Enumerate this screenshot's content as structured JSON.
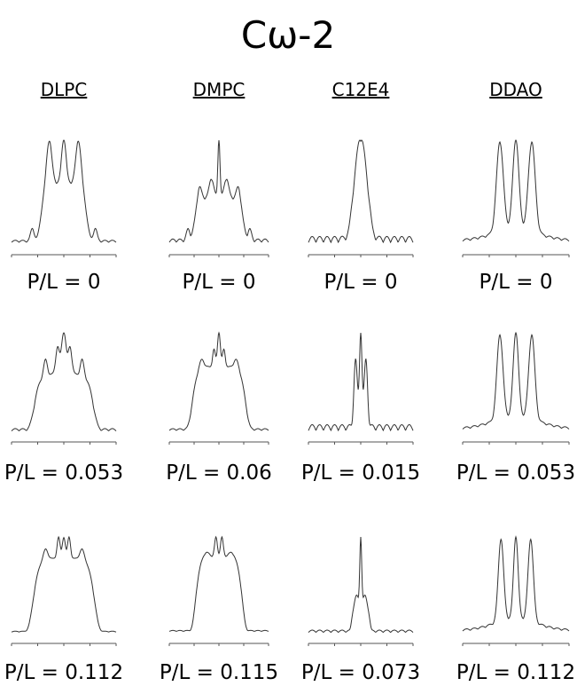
{
  "title": "Cω-2",
  "columns": [
    {
      "name": "DLPC",
      "labels": [
        "P/L = 0",
        "P/L = 0.053",
        "P/L = 0.112"
      ]
    },
    {
      "name": "DMPC",
      "labels": [
        "P/L = 0",
        "P/L = 0.06",
        "P/L = 0.115"
      ]
    },
    {
      "name": "C12E4",
      "labels": [
        "P/L = 0",
        "P/L = 0.015",
        "P/L = 0.073"
      ]
    },
    {
      "name": "DDAO",
      "labels": [
        "P/L = 0",
        "P/L = 0.053",
        "P/L = 0.112"
      ]
    }
  ]
}
